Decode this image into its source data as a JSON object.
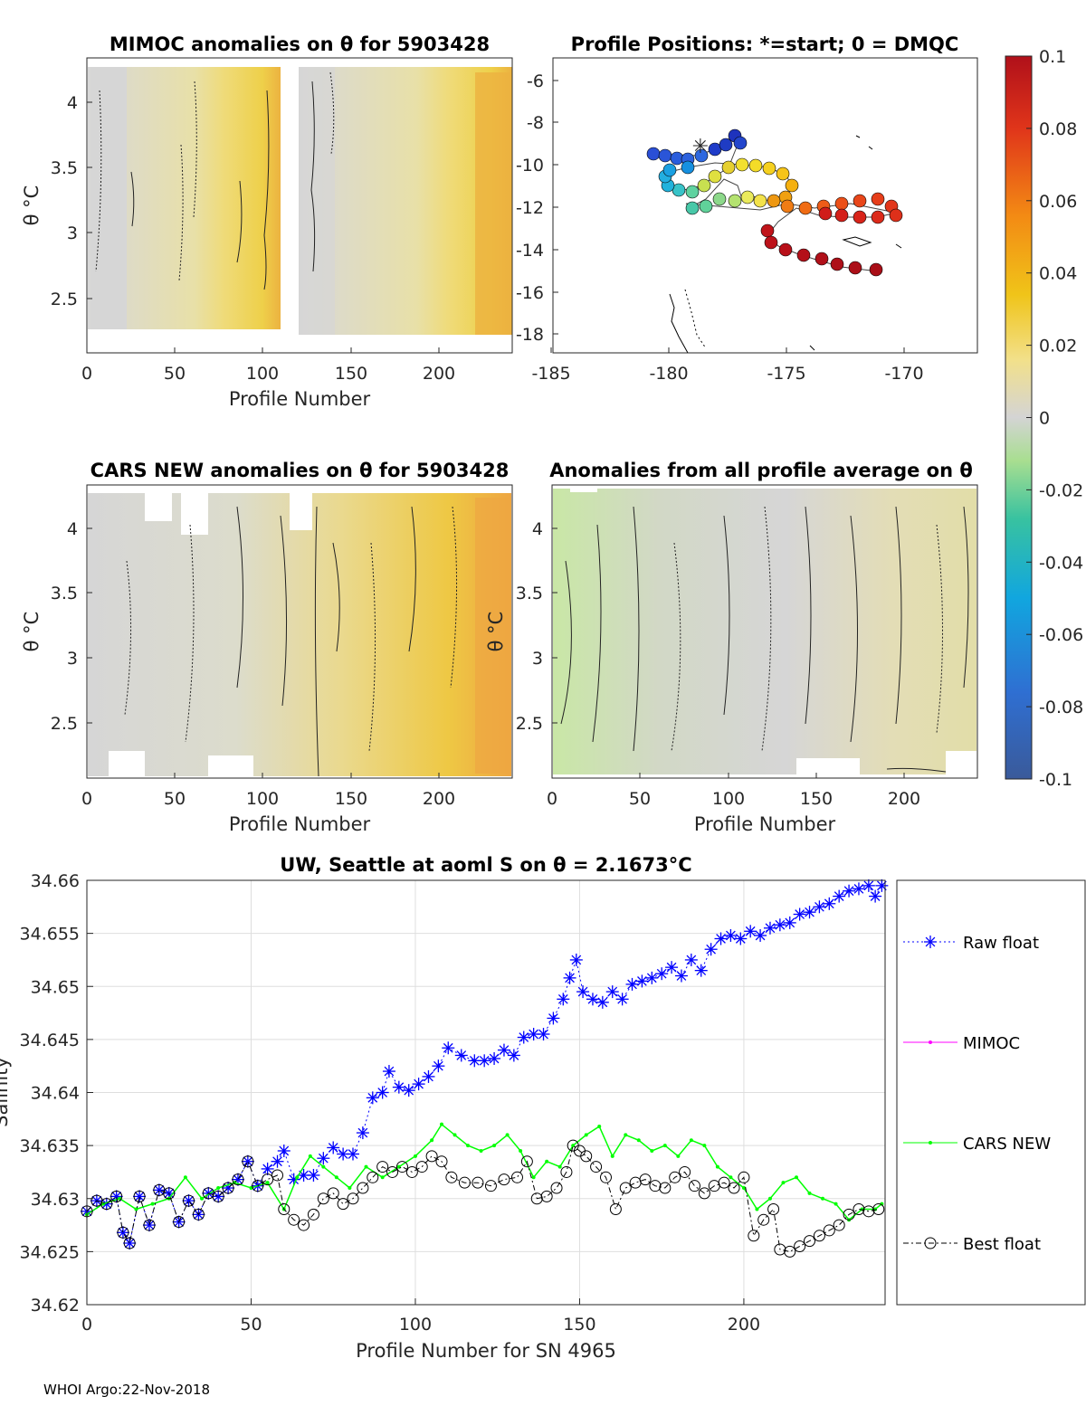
{
  "footer": "WHOI Argo:22-Nov-2018",
  "panels": {
    "mimoc": {
      "title": "MIMOC anomalies on θ  for 5903428",
      "xlabel": "Profile Number",
      "ylabel": "θ °C",
      "xticks": [
        "0",
        "50",
        "100",
        "150",
        "200"
      ],
      "yticks": [
        "4",
        "3.5",
        "3",
        "2.5"
      ]
    },
    "positions": {
      "title": "Profile Positions: *=start; 0 = DMQC",
      "xticks": [
        "-185",
        "-180",
        "-175",
        "-170"
      ],
      "yticks": [
        "-6",
        "-8",
        "-10",
        "-12",
        "-14",
        "-16",
        "-18"
      ]
    },
    "cars": {
      "title": "CARS NEW anomalies on θ for 5903428",
      "xlabel": "Profile Number",
      "ylabel": "θ °C",
      "xticks": [
        "0",
        "50",
        "100",
        "150",
        "200"
      ],
      "yticks": [
        "4",
        "3.5",
        "3",
        "2.5"
      ]
    },
    "allavg": {
      "title": "Anomalies from all profile average on θ",
      "xlabel": "Profile Number",
      "ylabel": "θ °C",
      "xticks": [
        "0",
        "50",
        "100",
        "150",
        "200"
      ],
      "yticks": [
        "4",
        "3.5",
        "3",
        "2.5"
      ]
    }
  },
  "colorbar": {
    "ticks": [
      "0.1",
      "0.08",
      "0.06",
      "0.04",
      "0.02",
      "0",
      "-0.02",
      "-0.04",
      "-0.06",
      "-0.08",
      "-0.1"
    ],
    "range": [
      -0.1,
      0.1
    ]
  },
  "chart_data": {
    "type": "line",
    "title": "UW, Seattle at aoml S on θ = 2.1673°C",
    "xlabel": "Profile Number for SN 4965",
    "ylabel": "Salinity",
    "xlim": [
      0,
      243
    ],
    "ylim": [
      34.62,
      34.66
    ],
    "xticks": [
      "0",
      "50",
      "100",
      "150",
      "200"
    ],
    "yticks": [
      "34.66",
      "34.655",
      "34.65",
      "34.645",
      "34.64",
      "34.635",
      "34.63",
      "34.625",
      "34.62"
    ],
    "legend_position": "right",
    "series": [
      {
        "name": "Raw float",
        "color": "#0000ff",
        "marker": "asterisk",
        "points": [
          [
            0,
            34.6288
          ],
          [
            3,
            34.6298
          ],
          [
            6,
            34.6295
          ],
          [
            9,
            34.6302
          ],
          [
            11,
            34.6268
          ],
          [
            13,
            34.6258
          ],
          [
            16,
            34.6302
          ],
          [
            19,
            34.6275
          ],
          [
            22,
            34.6308
          ],
          [
            25,
            34.6305
          ],
          [
            28,
            34.6278
          ],
          [
            31,
            34.6298
          ],
          [
            34,
            34.6285
          ],
          [
            37,
            34.6305
          ],
          [
            40,
            34.6302
          ],
          [
            43,
            34.631
          ],
          [
            46,
            34.6318
          ],
          [
            49,
            34.6335
          ],
          [
            52,
            34.6312
          ],
          [
            55,
            34.6328
          ],
          [
            58,
            34.6335
          ],
          [
            60,
            34.6345
          ],
          [
            63,
            34.6318
          ],
          [
            66,
            34.6322
          ],
          [
            69,
            34.6322
          ],
          [
            72,
            34.6338
          ],
          [
            75,
            34.6348
          ],
          [
            78,
            34.6342
          ],
          [
            81,
            34.6342
          ],
          [
            84,
            34.6362
          ],
          [
            87,
            34.6395
          ],
          [
            90,
            34.64
          ],
          [
            92,
            34.642
          ],
          [
            95,
            34.6405
          ],
          [
            98,
            34.6402
          ],
          [
            101,
            34.6408
          ],
          [
            104,
            34.6415
          ],
          [
            107,
            34.6425
          ],
          [
            110,
            34.6442
          ],
          [
            114,
            34.6435
          ],
          [
            118,
            34.643
          ],
          [
            121,
            34.643
          ],
          [
            124,
            34.6432
          ],
          [
            127,
            34.644
          ],
          [
            130,
            34.6435
          ],
          [
            133,
            34.6452
          ],
          [
            136,
            34.6455
          ],
          [
            139,
            34.6455
          ],
          [
            142,
            34.647
          ],
          [
            145,
            34.6488
          ],
          [
            147,
            34.6508
          ],
          [
            149,
            34.6525
          ],
          [
            151,
            34.6495
          ],
          [
            154,
            34.6488
          ],
          [
            157,
            34.6485
          ],
          [
            160,
            34.6495
          ],
          [
            163,
            34.6488
          ],
          [
            166,
            34.6502
          ],
          [
            169,
            34.6505
          ],
          [
            172,
            34.6508
          ],
          [
            175,
            34.6512
          ],
          [
            178,
            34.6518
          ],
          [
            181,
            34.651
          ],
          [
            184,
            34.6525
          ],
          [
            187,
            34.6515
          ],
          [
            190,
            34.6535
          ],
          [
            193,
            34.6545
          ],
          [
            196,
            34.6548
          ],
          [
            199,
            34.6545
          ],
          [
            202,
            34.6552
          ],
          [
            205,
            34.6548
          ],
          [
            208,
            34.6555
          ],
          [
            211,
            34.6558
          ],
          [
            214,
            34.656
          ],
          [
            217,
            34.6568
          ],
          [
            220,
            34.657
          ],
          [
            223,
            34.6575
          ],
          [
            226,
            34.6578
          ],
          [
            229,
            34.6585
          ],
          [
            232,
            34.659
          ],
          [
            235,
            34.6592
          ],
          [
            238,
            34.6595
          ],
          [
            240,
            34.6585
          ],
          [
            242,
            34.6595
          ]
        ]
      },
      {
        "name": "MIMOC",
        "color": "#ff00ff",
        "marker": "dot",
        "points": []
      },
      {
        "name": "CARS NEW",
        "color": "#00ff00",
        "marker": "dot",
        "points": [
          [
            0,
            34.6285
          ],
          [
            5,
            34.6295
          ],
          [
            10,
            34.63
          ],
          [
            15,
            34.629
          ],
          [
            20,
            34.6295
          ],
          [
            25,
            34.63
          ],
          [
            30,
            34.632
          ],
          [
            35,
            34.63
          ],
          [
            40,
            34.631
          ],
          [
            45,
            34.6315
          ],
          [
            50,
            34.631
          ],
          [
            55,
            34.6315
          ],
          [
            60,
            34.629
          ],
          [
            64,
            34.632
          ],
          [
            68,
            34.634
          ],
          [
            72,
            34.633
          ],
          [
            76,
            34.632
          ],
          [
            80,
            34.631
          ],
          [
            85,
            34.633
          ],
          [
            90,
            34.632
          ],
          [
            95,
            34.633
          ],
          [
            100,
            34.634
          ],
          [
            105,
            34.6355
          ],
          [
            108,
            34.637
          ],
          [
            112,
            34.636
          ],
          [
            116,
            34.635
          ],
          [
            120,
            34.6345
          ],
          [
            124,
            34.635
          ],
          [
            128,
            34.636
          ],
          [
            132,
            34.6345
          ],
          [
            136,
            34.632
          ],
          [
            140,
            34.6335
          ],
          [
            144,
            34.633
          ],
          [
            148,
            34.635
          ],
          [
            152,
            34.636
          ],
          [
            156,
            34.6368
          ],
          [
            160,
            34.634
          ],
          [
            164,
            34.636
          ],
          [
            168,
            34.6355
          ],
          [
            172,
            34.6345
          ],
          [
            176,
            34.635
          ],
          [
            180,
            34.634
          ],
          [
            184,
            34.6355
          ],
          [
            188,
            34.635
          ],
          [
            192,
            34.633
          ],
          [
            196,
            34.632
          ],
          [
            200,
            34.631
          ],
          [
            204,
            34.629
          ],
          [
            208,
            34.63
          ],
          [
            212,
            34.6315
          ],
          [
            216,
            34.632
          ],
          [
            220,
            34.6305
          ],
          [
            224,
            34.63
          ],
          [
            228,
            34.6295
          ],
          [
            232,
            34.628
          ],
          [
            236,
            34.629
          ],
          [
            240,
            34.629
          ],
          [
            242,
            34.6295
          ]
        ]
      },
      {
        "name": "Best float",
        "color": "#000000",
        "marker": "circle",
        "points": [
          [
            0,
            34.6288
          ],
          [
            3,
            34.6298
          ],
          [
            6,
            34.6295
          ],
          [
            9,
            34.6302
          ],
          [
            11,
            34.6268
          ],
          [
            13,
            34.6258
          ],
          [
            16,
            34.6302
          ],
          [
            19,
            34.6275
          ],
          [
            22,
            34.6308
          ],
          [
            25,
            34.6305
          ],
          [
            28,
            34.6278
          ],
          [
            31,
            34.6298
          ],
          [
            34,
            34.6285
          ],
          [
            37,
            34.6305
          ],
          [
            40,
            34.6302
          ],
          [
            43,
            34.631
          ],
          [
            46,
            34.6318
          ],
          [
            49,
            34.6335
          ],
          [
            52,
            34.6312
          ],
          [
            55,
            34.6318
          ],
          [
            58,
            34.6322
          ],
          [
            60,
            34.629
          ],
          [
            63,
            34.628
          ],
          [
            66,
            34.6275
          ],
          [
            69,
            34.6285
          ],
          [
            72,
            34.63
          ],
          [
            75,
            34.6305
          ],
          [
            78,
            34.6295
          ],
          [
            81,
            34.63
          ],
          [
            84,
            34.631
          ],
          [
            87,
            34.632
          ],
          [
            90,
            34.633
          ],
          [
            93,
            34.6325
          ],
          [
            96,
            34.633
          ],
          [
            99,
            34.6325
          ],
          [
            102,
            34.633
          ],
          [
            105,
            34.634
          ],
          [
            108,
            34.6335
          ],
          [
            111,
            34.632
          ],
          [
            115,
            34.6315
          ],
          [
            119,
            34.6315
          ],
          [
            123,
            34.6312
          ],
          [
            127,
            34.6318
          ],
          [
            131,
            34.632
          ],
          [
            134,
            34.6335
          ],
          [
            137,
            34.63
          ],
          [
            140,
            34.6302
          ],
          [
            143,
            34.631
          ],
          [
            146,
            34.6325
          ],
          [
            148,
            34.635
          ],
          [
            150,
            34.6345
          ],
          [
            152,
            34.634
          ],
          [
            155,
            34.633
          ],
          [
            158,
            34.632
          ],
          [
            161,
            34.629
          ],
          [
            164,
            34.631
          ],
          [
            167,
            34.6315
          ],
          [
            170,
            34.6318
          ],
          [
            173,
            34.6312
          ],
          [
            176,
            34.631
          ],
          [
            179,
            34.632
          ],
          [
            182,
            34.6325
          ],
          [
            185,
            34.6312
          ],
          [
            188,
            34.6305
          ],
          [
            191,
            34.6312
          ],
          [
            194,
            34.6315
          ],
          [
            197,
            34.631
          ],
          [
            200,
            34.632
          ],
          [
            203,
            34.6265
          ],
          [
            206,
            34.628
          ],
          [
            209,
            34.629
          ],
          [
            211,
            34.6252
          ],
          [
            214,
            34.625
          ],
          [
            217,
            34.6255
          ],
          [
            220,
            34.626
          ],
          [
            223,
            34.6265
          ],
          [
            226,
            34.627
          ],
          [
            229,
            34.6275
          ],
          [
            232,
            34.6285
          ],
          [
            235,
            34.629
          ],
          [
            238,
            34.6288
          ],
          [
            241,
            34.629
          ]
        ]
      }
    ]
  }
}
